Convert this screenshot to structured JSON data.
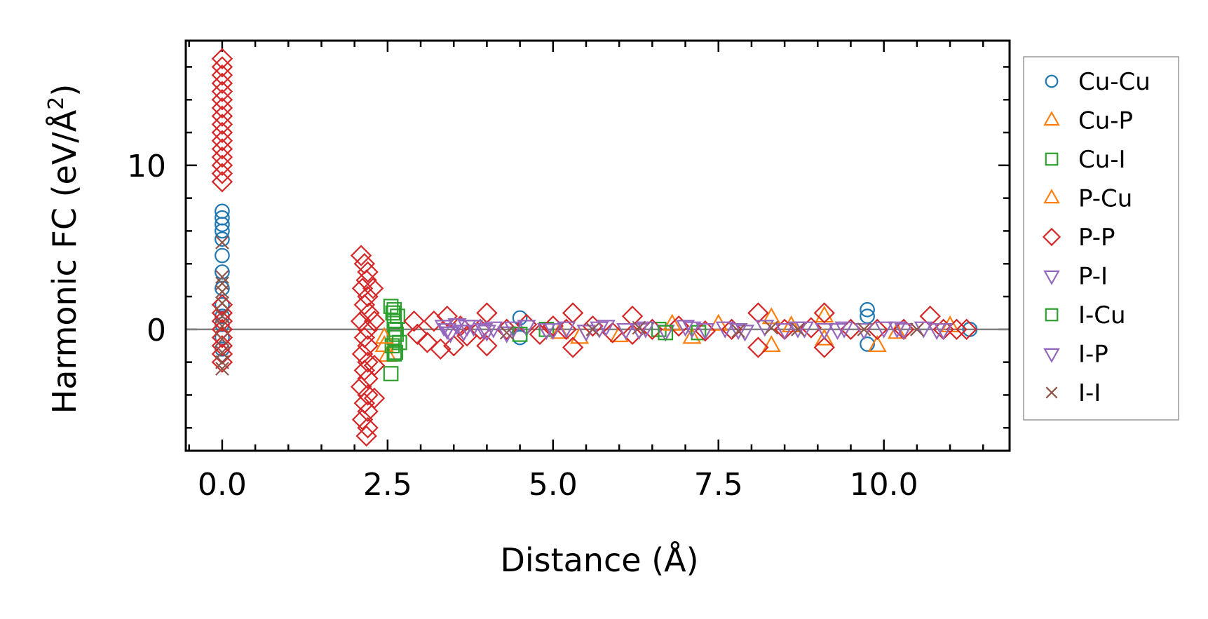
{
  "chart_data": {
    "type": "scatter",
    "title": "",
    "xlabel": "Distance (Å)",
    "ylabel_main": "Harmonic FC (eV/Å",
    "ylabel_sup": "2",
    "ylabel_close": ")",
    "xlim": [
      -0.55,
      11.9
    ],
    "ylim": [
      -7.4,
      17.6
    ],
    "xticks": [
      0.0,
      2.5,
      5.0,
      7.5,
      10.0
    ],
    "xtick_labels": [
      "0.0",
      "2.5",
      "5.0",
      "7.5",
      "10.0"
    ],
    "yticks": [
      0,
      10
    ],
    "ytick_labels": [
      "0",
      "10"
    ],
    "x_minor_step": 0.5,
    "y_minor_step": 2,
    "reference_line_y": 0,
    "legend_position": "outside-right",
    "series": [
      {
        "name": "Cu-Cu",
        "marker": "circle",
        "color": "#1f77b4",
        "points": [
          [
            0,
            7.2
          ],
          [
            0,
            6.8
          ],
          [
            0,
            6.4
          ],
          [
            0,
            6.0
          ],
          [
            0,
            5.5
          ],
          [
            0,
            4.5
          ],
          [
            0,
            3.5
          ],
          [
            0,
            2.5
          ],
          [
            0,
            1.5
          ],
          [
            0,
            0.8
          ],
          [
            0,
            0.3
          ],
          [
            0,
            -0.5
          ],
          [
            0,
            -1.2
          ],
          [
            4.5,
            0.7
          ],
          [
            4.5,
            -0.5
          ],
          [
            9.75,
            1.2
          ],
          [
            9.75,
            0.8
          ],
          [
            9.75,
            -0.9
          ],
          [
            11.3,
            0
          ]
        ]
      },
      {
        "name": "Cu-P",
        "marker": "triangle-up",
        "color": "#ff7f0e",
        "points": [
          [
            2.45,
            -1.0
          ],
          [
            2.5,
            -1.6
          ],
          [
            5.4,
            -0.5
          ],
          [
            6.0,
            -0.4
          ],
          [
            7.1,
            -0.5
          ],
          [
            8.3,
            0.7
          ],
          [
            8.3,
            -1.0
          ],
          [
            9.1,
            0.8
          ],
          [
            9.1,
            -0.6
          ],
          [
            9.9,
            -1.0
          ],
          [
            11.0,
            0.2
          ]
        ]
      },
      {
        "name": "Cu-I",
        "marker": "square",
        "color": "#2ca02c",
        "points": [
          [
            2.55,
            1.4
          ],
          [
            2.58,
            1.0
          ],
          [
            2.6,
            0.5
          ],
          [
            2.62,
            0
          ],
          [
            2.6,
            -0.5
          ],
          [
            2.57,
            -1.0
          ],
          [
            2.62,
            -1.4
          ],
          [
            2.55,
            -2.7
          ],
          [
            2.65,
            0.8
          ],
          [
            2.68,
            -0.8
          ],
          [
            4.9,
            0
          ],
          [
            6.6,
            0
          ],
          [
            7.2,
            -0.2
          ]
        ]
      },
      {
        "name": "P-Cu",
        "marker": "triangle-up",
        "color": "#ff7f0e",
        "points": [
          [
            2.45,
            -0.5
          ],
          [
            5.1,
            -0.2
          ],
          [
            6.8,
            0.3
          ],
          [
            7.5,
            0.3
          ],
          [
            8.6,
            0.2
          ],
          [
            10.2,
            -0.2
          ]
        ]
      },
      {
        "name": "P-P",
        "marker": "diamond",
        "color": "#d62728",
        "points": [
          [
            0,
            16.5
          ],
          [
            0,
            16.0
          ],
          [
            0,
            15.5
          ],
          [
            0,
            15.0
          ],
          [
            0,
            14.5
          ],
          [
            0,
            14.0
          ],
          [
            0,
            13.5
          ],
          [
            0,
            13.0
          ],
          [
            0,
            12.5
          ],
          [
            0,
            12.0
          ],
          [
            0,
            11.5
          ],
          [
            0,
            11.0
          ],
          [
            0,
            10.5
          ],
          [
            0,
            10.0
          ],
          [
            0,
            9.5
          ],
          [
            0,
            9.0
          ],
          [
            0,
            1.5
          ],
          [
            0,
            1.0
          ],
          [
            0,
            0.5
          ],
          [
            0,
            0
          ],
          [
            0,
            -0.5
          ],
          [
            0,
            -1.0
          ],
          [
            0,
            -1.5
          ],
          [
            0,
            -2.0
          ],
          [
            2.1,
            4.5
          ],
          [
            2.15,
            4.0
          ],
          [
            2.2,
            3.5
          ],
          [
            2.18,
            3.0
          ],
          [
            2.12,
            2.5
          ],
          [
            2.2,
            2.0
          ],
          [
            2.15,
            1.5
          ],
          [
            2.22,
            1.0
          ],
          [
            2.1,
            0.5
          ],
          [
            2.2,
            0
          ],
          [
            2.15,
            -0.5
          ],
          [
            2.2,
            -1.0
          ],
          [
            2.12,
            -1.5
          ],
          [
            2.2,
            -2.0
          ],
          [
            2.15,
            -2.5
          ],
          [
            2.2,
            -3.0
          ],
          [
            2.1,
            -3.5
          ],
          [
            2.2,
            -4.0
          ],
          [
            2.15,
            -4.5
          ],
          [
            2.2,
            -5.0
          ],
          [
            2.12,
            -5.5
          ],
          [
            2.2,
            -6.0
          ],
          [
            2.18,
            -6.5
          ],
          [
            2.28,
            2.5
          ],
          [
            2.3,
            0.5
          ],
          [
            2.3,
            -2.2
          ],
          [
            2.3,
            -4.2
          ],
          [
            2.9,
            0.5
          ],
          [
            2.95,
            -0.3
          ],
          [
            3.1,
            -0.8
          ],
          [
            3.2,
            0.5
          ],
          [
            3.3,
            -1.2
          ],
          [
            3.4,
            0.8
          ],
          [
            3.5,
            -1.0
          ],
          [
            3.6,
            0.2
          ],
          [
            3.7,
            -0.4
          ],
          [
            3.9,
            0
          ],
          [
            4.0,
            1.0
          ],
          [
            4.0,
            -1.0
          ],
          [
            4.3,
            0
          ],
          [
            4.6,
            0.3
          ],
          [
            4.8,
            -0.3
          ],
          [
            5.0,
            0.2
          ],
          [
            5.2,
            0
          ],
          [
            5.3,
            1.0
          ],
          [
            5.3,
            -1.1
          ],
          [
            5.6,
            0.2
          ],
          [
            5.9,
            -0.2
          ],
          [
            6.2,
            0.8
          ],
          [
            6.2,
            -0.3
          ],
          [
            6.5,
            0
          ],
          [
            6.9,
            0.2
          ],
          [
            7.3,
            -0.1
          ],
          [
            7.7,
            0
          ],
          [
            8.1,
            1.0
          ],
          [
            8.1,
            -1.1
          ],
          [
            8.5,
            0
          ],
          [
            8.9,
            0.1
          ],
          [
            9.1,
            1.0
          ],
          [
            9.1,
            -1.1
          ],
          [
            9.5,
            0
          ],
          [
            9.9,
            0
          ],
          [
            10.3,
            0
          ],
          [
            10.7,
            0.8
          ],
          [
            10.9,
            0
          ],
          [
            11.1,
            0
          ],
          [
            11.25,
            0
          ]
        ]
      },
      {
        "name": "P-I",
        "marker": "triangle-down",
        "color": "#9467bd",
        "points": [
          [
            3.35,
            0.2
          ],
          [
            3.45,
            -0.2
          ],
          [
            3.55,
            0.3
          ],
          [
            3.65,
            -0.1
          ],
          [
            3.8,
            0.2
          ],
          [
            3.95,
            0
          ],
          [
            4.1,
            0.1
          ],
          [
            4.3,
            -0.2
          ],
          [
            4.6,
            0.2
          ],
          [
            4.9,
            0
          ],
          [
            5.2,
            0.1
          ],
          [
            5.5,
            -0.1
          ],
          [
            5.8,
            0.2
          ],
          [
            6.1,
            0
          ],
          [
            6.4,
            0.1
          ],
          [
            6.7,
            -0.1
          ],
          [
            7.0,
            0.2
          ],
          [
            7.3,
            0
          ],
          [
            7.6,
            0.1
          ],
          [
            7.9,
            -0.1
          ],
          [
            8.2,
            0.2
          ],
          [
            8.5,
            0
          ],
          [
            8.8,
            0.1
          ],
          [
            9.1,
            0
          ],
          [
            9.4,
            0.1
          ],
          [
            9.7,
            0
          ],
          [
            10.0,
            0.1
          ],
          [
            10.3,
            0
          ],
          [
            10.6,
            0.1
          ],
          [
            10.9,
            0
          ]
        ]
      },
      {
        "name": "I-Cu",
        "marker": "square",
        "color": "#2ca02c",
        "points": [
          [
            2.6,
            1.2
          ],
          [
            2.63,
            -0.3
          ],
          [
            2.6,
            -1.5
          ],
          [
            4.5,
            -0.3
          ],
          [
            6.7,
            -0.2
          ]
        ]
      },
      {
        "name": "I-P",
        "marker": "triangle-down",
        "color": "#9467bd",
        "points": [
          [
            3.4,
            0
          ],
          [
            3.7,
            0.2
          ],
          [
            4.0,
            -0.1
          ],
          [
            4.4,
            0.1
          ],
          [
            5.0,
            0
          ],
          [
            5.7,
            0.1
          ],
          [
            6.3,
            0
          ],
          [
            7.1,
            0.1
          ],
          [
            7.8,
            0
          ],
          [
            8.7,
            0.1
          ],
          [
            9.3,
            0
          ],
          [
            10.2,
            0.1
          ],
          [
            10.8,
            0
          ]
        ]
      },
      {
        "name": "I-I",
        "marker": "cross",
        "color": "#8c564b",
        "points": [
          [
            0,
            5.3
          ],
          [
            0,
            3.2
          ],
          [
            0,
            2.8
          ],
          [
            0,
            2.3
          ],
          [
            0,
            1.6
          ],
          [
            0,
            0.8
          ],
          [
            0,
            0.2
          ],
          [
            0,
            -0.6
          ],
          [
            0,
            -1.4
          ],
          [
            0,
            -2.0
          ],
          [
            0,
            -2.4
          ],
          [
            4.3,
            -0.2
          ],
          [
            5.6,
            0
          ],
          [
            6.3,
            0.1
          ],
          [
            7.8,
            -0.1
          ],
          [
            8.3,
            0.1
          ],
          [
            8.7,
            0
          ],
          [
            9.7,
            0
          ],
          [
            10.5,
            0
          ]
        ]
      }
    ]
  }
}
